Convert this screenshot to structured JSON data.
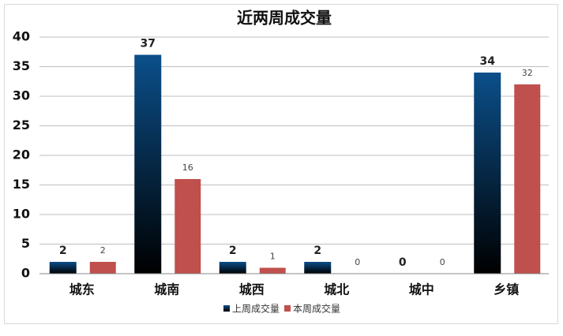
{
  "chart_data": {
    "type": "bar",
    "title": "近两周成交量",
    "categories": [
      "城东",
      "城南",
      "城西",
      "城北",
      "城中",
      "乡镇"
    ],
    "series": [
      {
        "name": "上周成交量",
        "color": "#0b4f8a",
        "values": [
          2,
          37,
          2,
          2,
          0,
          34
        ]
      },
      {
        "name": "本周成交量",
        "color": "#c0504d",
        "values": [
          2,
          16,
          1,
          0,
          0,
          32
        ]
      }
    ],
    "ylim": [
      0,
      40
    ],
    "yticks": [
      0,
      5,
      10,
      15,
      20,
      25,
      30,
      35,
      40
    ],
    "grid": true,
    "legend": "bottom"
  }
}
